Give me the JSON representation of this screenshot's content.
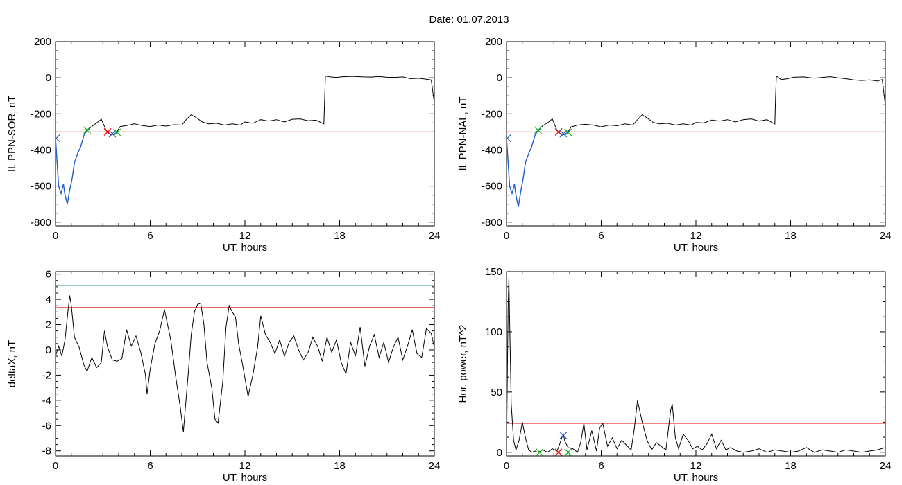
{
  "header": {
    "date_label": "Date:  01.07.2013"
  },
  "colors": {
    "series": "#000000",
    "blue": "#1f5fd0",
    "red": "#e00000",
    "green": "#1ea81e",
    "teal": "#1f8c8c"
  },
  "chart_data": [
    {
      "id": "p1",
      "type": "line",
      "title": "",
      "xlabel": "UT, hours",
      "ylabel": "IL PPN-SOR, nT",
      "xlim": [
        0,
        24
      ],
      "ylim": [
        -820,
        200
      ],
      "xticks": [
        0,
        6,
        12,
        18,
        24
      ],
      "yticks": [
        -800,
        -600,
        -400,
        -200,
        0,
        200
      ],
      "series": [
        {
          "color": "#000000",
          "x": [
            0,
            0.2,
            0.35,
            0.5,
            0.6,
            0.75,
            0.9,
            1.05,
            1.2,
            1.4,
            1.6,
            1.8,
            2.0,
            2.3,
            2.6,
            2.9,
            3.2,
            3.5,
            3.8,
            4.1,
            4.5,
            5,
            5.5,
            6,
            6.5,
            7,
            7.5,
            8,
            8.3,
            8.6,
            8.9,
            9.3,
            9.7,
            10.2,
            10.7,
            11.2,
            11.7,
            12,
            12.5,
            13,
            13.5,
            14,
            14.5,
            15,
            15.5,
            16,
            16.5,
            17.0,
            17.05,
            17.1,
            17.4,
            17.8,
            18.2,
            18.8,
            19.5,
            20,
            20.5,
            21,
            21.5,
            22,
            22.5,
            23,
            23.5,
            23.8,
            24
          ],
          "y": [
            -330,
            -600,
            -640,
            -590,
            -650,
            -700,
            -620,
            -560,
            -470,
            -420,
            -380,
            -320,
            -290,
            -270,
            -250,
            -230,
            -290,
            -315,
            -310,
            -270,
            -265,
            -255,
            -265,
            -270,
            -262,
            -268,
            -260,
            -262,
            -230,
            -205,
            -220,
            -245,
            -255,
            -252,
            -262,
            -255,
            -262,
            -245,
            -252,
            -232,
            -240,
            -232,
            -245,
            -230,
            -228,
            -238,
            -235,
            -255,
            -120,
            10,
            5,
            2,
            6,
            8,
            5,
            4,
            7,
            3,
            2,
            5,
            -5,
            -3,
            -8,
            -12,
            -140
          ]
        },
        {
          "color": "#1f5fd0",
          "x": [
            0,
            0.2,
            0.35,
            0.5,
            0.6,
            0.75,
            0.9,
            1.05,
            1.2,
            1.4,
            1.6,
            1.8,
            2.0,
            2.2
          ],
          "y": [
            -330,
            -600,
            -640,
            -590,
            -650,
            -700,
            -620,
            -560,
            -470,
            -420,
            -380,
            -320,
            -290,
            -285
          ]
        },
        {
          "color": "#1f5fd0",
          "x": [
            3.3,
            3.5,
            3.7,
            3.9
          ],
          "y": [
            -300,
            -318,
            -312,
            -302
          ]
        }
      ],
      "thresholds": [
        {
          "y": -300,
          "color": "#e00000"
        }
      ],
      "markers": [
        {
          "x": 0.05,
          "y": -335,
          "color": "#1f5fd0"
        },
        {
          "x": 2.0,
          "y": -290,
          "color": "#1ea81e"
        },
        {
          "x": 3.3,
          "y": -300,
          "color": "#e00000"
        },
        {
          "x": 3.6,
          "y": -310,
          "color": "#1f5fd0"
        },
        {
          "x": 3.9,
          "y": -302,
          "color": "#1ea81e"
        }
      ]
    },
    {
      "id": "p2",
      "type": "line",
      "title": "",
      "xlabel": "UT, hours",
      "ylabel": "IL PPN-NAL, nT",
      "xlim": [
        0,
        24
      ],
      "ylim": [
        -820,
        200
      ],
      "xticks": [
        0,
        6,
        12,
        18,
        24
      ],
      "yticks": [
        -800,
        -600,
        -400,
        -200,
        0,
        200
      ],
      "series": [
        {
          "color": "#000000",
          "x": [
            0,
            0.2,
            0.35,
            0.5,
            0.6,
            0.75,
            0.9,
            1.05,
            1.2,
            1.4,
            1.6,
            1.8,
            2.0,
            2.3,
            2.6,
            2.9,
            3.2,
            3.5,
            3.8,
            4.1,
            4.5,
            5,
            5.5,
            6,
            6.5,
            7,
            7.5,
            8,
            8.3,
            8.6,
            8.9,
            9.3,
            9.7,
            10.2,
            10.7,
            11.2,
            11.7,
            12,
            12.5,
            13,
            13.5,
            14,
            14.5,
            15,
            15.5,
            16,
            16.5,
            17.0,
            17.05,
            17.1,
            17.4,
            17.8,
            18.2,
            18.8,
            19.5,
            20,
            20.5,
            21,
            21.5,
            22,
            22.5,
            23,
            23.5,
            23.8,
            24
          ],
          "y": [
            -330,
            -600,
            -640,
            -590,
            -650,
            -715,
            -630,
            -560,
            -470,
            -420,
            -380,
            -320,
            -290,
            -265,
            -250,
            -228,
            -292,
            -318,
            -312,
            -272,
            -262,
            -258,
            -262,
            -272,
            -262,
            -266,
            -255,
            -262,
            -232,
            -205,
            -222,
            -248,
            -255,
            -252,
            -262,
            -255,
            -262,
            -248,
            -250,
            -234,
            -240,
            -232,
            -245,
            -232,
            -228,
            -240,
            -232,
            -256,
            -100,
            10,
            -10,
            -5,
            3,
            5,
            -2,
            2,
            6,
            0,
            -5,
            -12,
            -15,
            -12,
            -18,
            -10,
            -150
          ]
        },
        {
          "color": "#1f5fd0",
          "x": [
            0,
            0.2,
            0.35,
            0.5,
            0.6,
            0.75,
            0.9,
            1.05,
            1.2,
            1.4,
            1.6,
            1.8,
            2.0,
            2.2
          ],
          "y": [
            -330,
            -600,
            -640,
            -590,
            -650,
            -715,
            -630,
            -560,
            -470,
            -420,
            -380,
            -320,
            -290,
            -282
          ]
        },
        {
          "color": "#1f5fd0",
          "x": [
            3.3,
            3.5,
            3.7,
            3.9
          ],
          "y": [
            -300,
            -318,
            -312,
            -302
          ]
        }
      ],
      "thresholds": [
        {
          "y": -300,
          "color": "#e00000"
        }
      ],
      "markers": [
        {
          "x": 0.05,
          "y": -335,
          "color": "#1f5fd0"
        },
        {
          "x": 2.0,
          "y": -290,
          "color": "#1ea81e"
        },
        {
          "x": 3.3,
          "y": -300,
          "color": "#e00000"
        },
        {
          "x": 3.6,
          "y": -310,
          "color": "#1f5fd0"
        },
        {
          "x": 3.9,
          "y": -302,
          "color": "#1ea81e"
        }
      ]
    },
    {
      "id": "p3",
      "type": "line",
      "title": "",
      "xlabel": "UT, hours",
      "ylabel": "deltaX, nT",
      "xlim": [
        0,
        24
      ],
      "ylim": [
        -8.4,
        6.2
      ],
      "xticks": [
        0,
        6,
        12,
        18,
        24
      ],
      "yticks": [
        -8,
        -6,
        -4,
        -2,
        0,
        2,
        4,
        6
      ],
      "series": [
        {
          "color": "#000000",
          "x": [
            0,
            0.2,
            0.4,
            0.6,
            0.8,
            0.9,
            1.0,
            1.2,
            1.5,
            1.8,
            2.0,
            2.3,
            2.6,
            2.9,
            3.1,
            3.3,
            3.6,
            3.9,
            4.2,
            4.5,
            4.8,
            5.1,
            5.4,
            5.7,
            5.8,
            6.0,
            6.3,
            6.6,
            6.9,
            7.1,
            7.3,
            7.6,
            7.9,
            8.1,
            8.2,
            8.4,
            8.6,
            8.8,
            9.0,
            9.2,
            9.4,
            9.6,
            9.9,
            10.1,
            10.3,
            10.6,
            10.8,
            11.0,
            11.2,
            11.4,
            11.6,
            11.9,
            12.2,
            12.5,
            12.8,
            13.0,
            13.3,
            13.6,
            13.9,
            14.2,
            14.5,
            14.8,
            15.1,
            15.4,
            15.7,
            16.0,
            16.3,
            16.6,
            16.9,
            17.2,
            17.5,
            17.8,
            18.1,
            18.4,
            18.7,
            19.0,
            19.3,
            19.6,
            19.9,
            20.2,
            20.5,
            20.8,
            21.1,
            21.4,
            21.7,
            22.0,
            22.3,
            22.6,
            22.9,
            23.2,
            23.5,
            23.8,
            24.0
          ],
          "y": [
            -0.5,
            0.3,
            -0.5,
            0.8,
            3.2,
            4.3,
            3.5,
            1.0,
            0.2,
            -1.2,
            -1.7,
            -0.6,
            -1.4,
            -1.0,
            1.5,
            0.2,
            -0.8,
            -0.9,
            -0.7,
            1.6,
            0.3,
            1.1,
            -0.2,
            -2.0,
            -3.5,
            -1.5,
            0.5,
            1.5,
            3.2,
            2.0,
            0.8,
            -2.0,
            -4.5,
            -6.5,
            -5.0,
            -2.0,
            1.2,
            3.0,
            3.6,
            3.7,
            2.0,
            -1.0,
            -3.0,
            -5.5,
            -5.8,
            -2.5,
            1.8,
            3.5,
            3.0,
            2.6,
            0.5,
            -1.5,
            -3.7,
            -2.0,
            0.2,
            2.7,
            1.2,
            0.6,
            -0.3,
            0.8,
            -0.5,
            0.6,
            1.1,
            0.0,
            -0.8,
            -0.2,
            1.0,
            0.3,
            -0.9,
            1.0,
            -0.2,
            0.8,
            -1.0,
            -1.9,
            0.6,
            -0.5,
            1.8,
            -1.3,
            0.3,
            1.2,
            -0.6,
            0.6,
            -1.0,
            0.2,
            1.0,
            -0.8,
            0.3,
            1.6,
            -0.3,
            -0.6,
            1.7,
            1.3,
            0.2
          ]
        }
      ],
      "thresholds": [
        {
          "y": 3.35,
          "color": "#e00000"
        },
        {
          "y": 5.1,
          "color": "#1f8c8c"
        }
      ],
      "markers": []
    },
    {
      "id": "p4",
      "type": "line",
      "title": "",
      "xlabel": "UT, hours",
      "ylabel": "Hor. power, nT^2",
      "xlim": [
        0,
        24
      ],
      "ylim": [
        -3,
        150
      ],
      "xticks": [
        0,
        6,
        12,
        18,
        24
      ],
      "yticks": [
        0,
        50,
        100,
        150
      ],
      "series": [
        {
          "color": "#000000",
          "x": [
            0,
            0.1,
            0.15,
            0.2,
            0.3,
            0.45,
            0.6,
            0.8,
            1.0,
            1.2,
            1.4,
            1.6,
            1.8,
            2.0,
            2.3,
            2.6,
            2.9,
            3.2,
            3.4,
            3.5,
            3.6,
            3.7,
            3.9,
            4.2,
            4.5,
            4.7,
            4.9,
            5.1,
            5.4,
            5.7,
            5.9,
            6.1,
            6.4,
            6.7,
            7.0,
            7.3,
            7.6,
            7.9,
            8.1,
            8.3,
            8.6,
            8.9,
            9.2,
            9.5,
            9.8,
            10.1,
            10.4,
            10.5,
            10.7,
            10.9,
            11.2,
            11.5,
            11.8,
            12.1,
            12.4,
            12.7,
            13.0,
            13.3,
            13.6,
            13.9,
            14.2,
            14.6,
            15.0,
            15.5,
            16,
            16.5,
            17,
            17.5,
            18,
            18.5,
            19,
            19.5,
            20,
            20.5,
            21,
            21.5,
            22,
            22.5,
            23,
            23.5,
            24
          ],
          "y": [
            0,
            120,
            145,
            110,
            40,
            10,
            2,
            10,
            25,
            12,
            2,
            0,
            1,
            0,
            2,
            0,
            3,
            1,
            8,
            12,
            15,
            9,
            4,
            3,
            0,
            8,
            24,
            2,
            18,
            1,
            20,
            24,
            5,
            12,
            3,
            10,
            6,
            2,
            20,
            43,
            25,
            10,
            2,
            8,
            5,
            2,
            35,
            40,
            12,
            3,
            15,
            10,
            3,
            5,
            2,
            7,
            15,
            3,
            10,
            2,
            4,
            1,
            0,
            1,
            3,
            0,
            2,
            1,
            0,
            1,
            4,
            0,
            2,
            1,
            0,
            2,
            1,
            0,
            1,
            2,
            4
          ]
        }
      ],
      "thresholds": [
        {
          "y": 24,
          "color": "#e00000"
        }
      ],
      "markers": [
        {
          "x": 2.1,
          "y": 0,
          "color": "#1ea81e"
        },
        {
          "x": 3.3,
          "y": 0,
          "color": "#e00000"
        },
        {
          "x": 3.6,
          "y": 14,
          "color": "#1f5fd0"
        },
        {
          "x": 3.9,
          "y": 0,
          "color": "#1ea81e"
        }
      ]
    }
  ]
}
